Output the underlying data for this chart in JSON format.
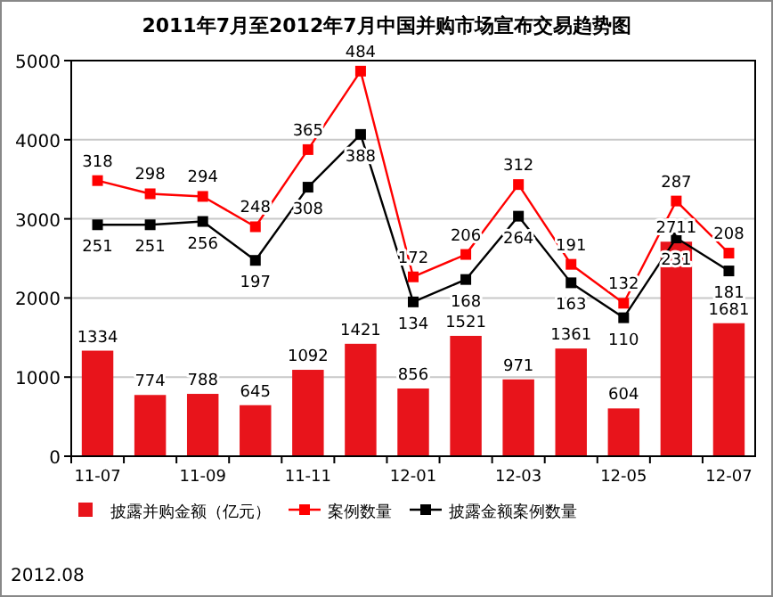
{
  "chart_data": {
    "type": "bar",
    "title": "2011年7月至2012年7月中国并购市场宣布交易趋势图",
    "categories": [
      "11-07",
      null,
      "11-09",
      null,
      "11-11",
      null,
      "12-01",
      null,
      "12-03",
      null,
      "12-05",
      null,
      "12-07"
    ],
    "series": [
      {
        "name": "披露并购金额（亿元）",
        "color": "#e8141b",
        "values": [
          1334,
          774,
          788,
          645,
          1092,
          1421,
          856,
          1521,
          971,
          1361,
          604,
          2711,
          1681
        ]
      },
      {
        "name": "案例数量",
        "type": "line",
        "axis": "y2",
        "color": "#ff0000",
        "values": [
          318,
          298,
          294,
          248,
          365,
          484,
          172,
          206,
          312,
          191,
          132,
          287,
          208
        ]
      },
      {
        "name": "披露金额案例数量",
        "type": "line",
        "axis": "y2",
        "color": "#000000",
        "values": [
          251,
          251,
          256,
          197,
          308,
          388,
          134,
          168,
          264,
          163,
          110,
          231,
          181
        ]
      }
    ],
    "ylim": [
      0,
      5000
    ],
    "yticks": [
      0,
      1000,
      2000,
      3000,
      4000,
      5000
    ],
    "y2lim": [
      -100,
      500
    ],
    "grid": "y",
    "legend": "bottom",
    "marker": "square",
    "data_labels": true,
    "tick_labels": "xy",
    "annotations": [
      "2012.08"
    ]
  }
}
